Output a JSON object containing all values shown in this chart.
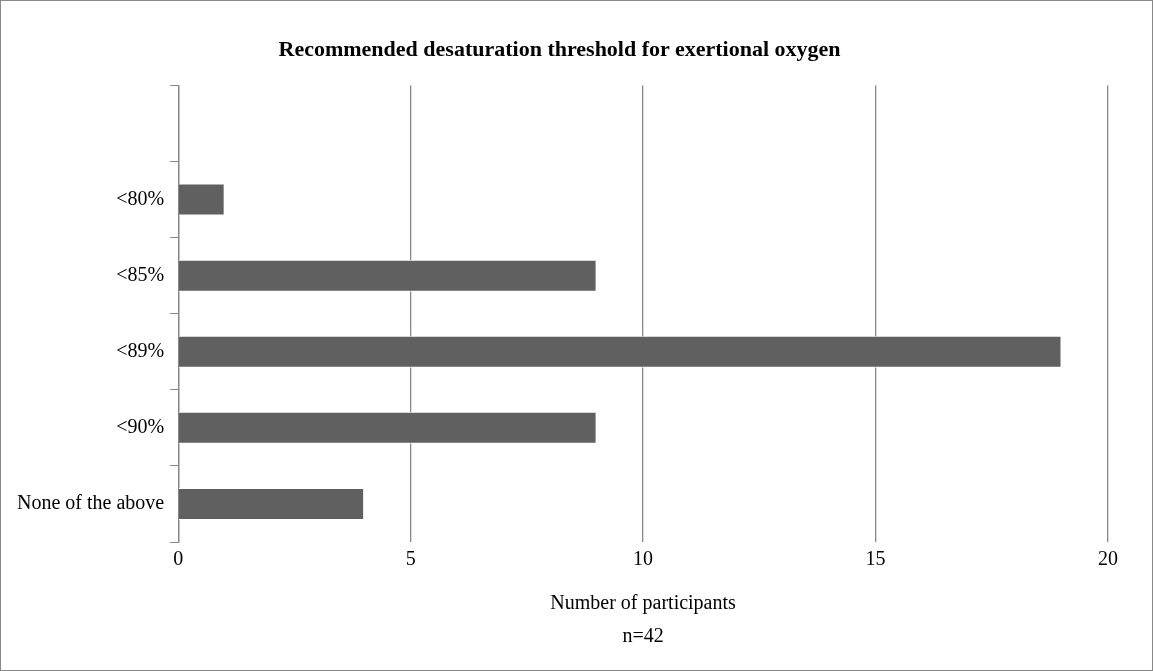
{
  "chart_data": {
    "type": "bar",
    "orientation": "horizontal",
    "title": "Recommended desaturation threshold for exertional oxygen",
    "xlabel": "Number of participants",
    "annotations": [
      "n=42"
    ],
    "categories": [
      null,
      "<80%",
      "<85%",
      "<89%",
      "<90%",
      "None of the above"
    ],
    "values": [
      null,
      1,
      9,
      19,
      9,
      4
    ],
    "color": "#606060",
    "xlim": [
      0,
      20
    ],
    "xticks": [
      0,
      5,
      10,
      15,
      20
    ],
    "grid": "x",
    "legend": false
  }
}
